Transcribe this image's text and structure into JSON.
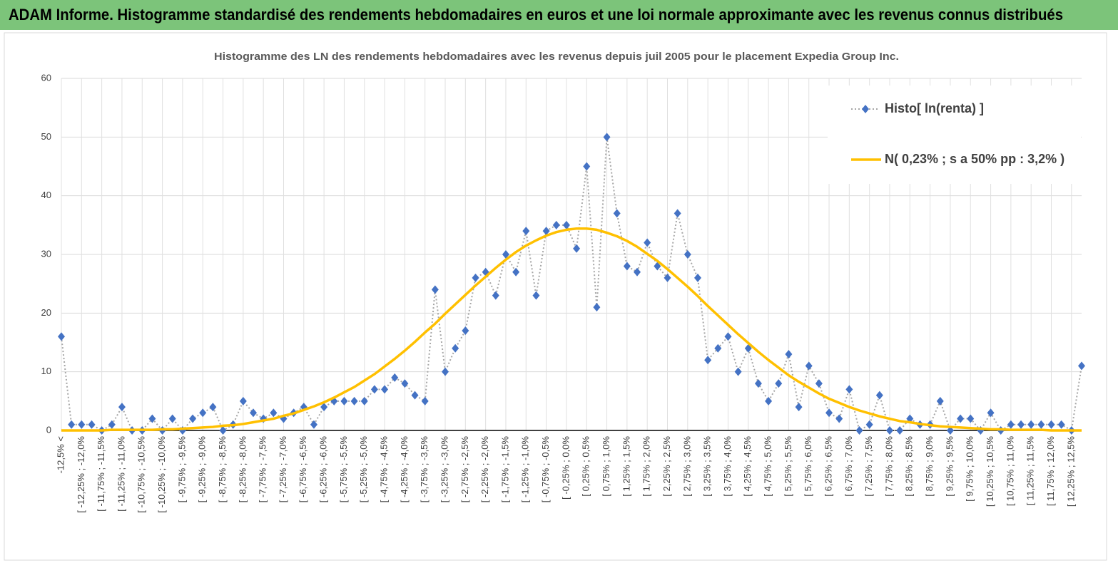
{
  "chart_data": {
    "type": "line",
    "banner": "ADAM Informe. Histogramme standardisé des rendements hebdomadaires en euros et une loi normale approximante avec les revenus connus distribués",
    "title": "Histogramme des LN des rendements hebdomadaires avec les revenus depuis juil 2005 pour le placement Expedia Group Inc.",
    "categories": [
      "-12,5% <",
      null,
      "[ -12,25% ; -12,0%",
      null,
      "[ -11,75% ; -11,5%",
      null,
      "[ -11,25% ; -11,0%",
      null,
      "[ -10,75% ; -10,5%",
      null,
      "[ -10,25% ; -10,0%",
      null,
      "[ -9,75% ; -9,5%",
      null,
      "[ -9,25% ; -9,0%",
      null,
      "[ -8,75% ; -8,5%",
      null,
      "[ -8,25% ; -8,0%",
      null,
      "[ -7,75% ; -7,5%",
      null,
      "[ -7,25% ; -7,0%",
      null,
      "[ -6,75% ; -6,5%",
      null,
      "[ -6,25% ; -6,0%",
      null,
      "[ -5,75% ; -5,5%",
      null,
      "[ -5,25% ; -5,0%",
      null,
      "[ -4,75% ; -4,5%",
      null,
      "[ -4,25% ; -4,0%",
      null,
      "[ -3,75% ; -3,5%",
      null,
      "[ -3,25% ; -3,0%",
      null,
      "[ -2,75% ; -2,5%",
      null,
      "[ -2,25% ; -2,0%",
      null,
      "[ -1,75% ; -1,5%",
      null,
      "[ -1,25% ; -1,0%",
      null,
      "[ -0,75% ; -0,5%",
      null,
      "[ -0,25% ; 0,0%",
      null,
      "[ 0,25% ; 0,5%",
      null,
      "[ 0,75% ; 1,0%",
      null,
      "[ 1,25% ; 1,5%",
      null,
      "[ 1,75% ; 2,0%",
      null,
      "[ 2,25% ; 2,5%",
      null,
      "[ 2,75% ; 3,0%",
      null,
      "[ 3,25% ; 3,5%",
      null,
      "[ 3,75% ; 4,0%",
      null,
      "[ 4,25% ; 4,5%",
      null,
      "[ 4,75% ; 5,0%",
      null,
      "[ 5,25% ; 5,5%",
      null,
      "[ 5,75% ; 6,0%",
      null,
      "[ 6,25% ; 6,5%",
      null,
      "[ 6,75% ; 7,0%",
      null,
      "[ 7,25% ; 7,5%",
      null,
      "[ 7,75% ; 8,0%",
      null,
      "[ 8,25% ; 8,5%",
      null,
      "[ 8,75% ; 9,0%",
      null,
      "[ 9,25% ; 9,5%",
      null,
      "[ 9,75% ; 10,0%",
      null,
      "[ 10,25% ; 10,5%",
      null,
      "[ 10,75% ; 11,0%",
      null,
      "[ 11,25% ; 11,5%",
      null,
      "[ 11,75% ; 12,0%",
      null,
      "[ 12,25% ; 12,5%",
      null
    ],
    "series": [
      {
        "name": "Histo[ ln(renta) ]",
        "color": "#4472c4",
        "line_color": "#a6a6a6",
        "values": [
          16,
          1,
          1,
          1,
          0,
          1,
          4,
          0,
          0,
          2,
          0,
          2,
          0,
          2,
          3,
          4,
          0,
          1,
          5,
          3,
          2,
          3,
          2,
          3,
          4,
          1,
          4,
          5,
          5,
          5,
          5,
          7,
          7,
          9,
          8,
          6,
          5,
          24,
          10,
          14,
          17,
          26,
          27,
          23,
          30,
          27,
          34,
          23,
          34,
          35,
          35,
          31,
          45,
          21,
          50,
          37,
          28,
          27,
          32,
          28,
          26,
          37,
          30,
          26,
          12,
          14,
          16,
          10,
          14,
          8,
          5,
          8,
          13,
          4,
          11,
          8,
          3,
          2,
          7,
          0,
          1,
          6,
          0,
          0,
          2,
          1,
          1,
          5,
          0,
          2,
          2,
          0,
          3,
          0,
          1,
          1,
          1,
          1,
          1,
          1,
          0,
          11
        ]
      },
      {
        "name": "N( 0,23% ; s a 50% pp : 3,2% )",
        "color": "#ffc000",
        "values": [
          0,
          0,
          0,
          0,
          0,
          0.1,
          0.1,
          0.1,
          0.1,
          0.1,
          0.2,
          0.2,
          0.3,
          0.4,
          0.5,
          0.6,
          0.8,
          0.9,
          1.1,
          1.4,
          1.7,
          2.0,
          2.5,
          2.9,
          3.5,
          4.1,
          4.8,
          5.6,
          6.5,
          7.4,
          8.5,
          9.6,
          10.9,
          12.2,
          13.6,
          15.1,
          16.7,
          18.2,
          19.9,
          21.5,
          23.1,
          24.7,
          26.2,
          27.7,
          29.1,
          30.4,
          31.5,
          32.4,
          33.2,
          33.8,
          34.2,
          34.4,
          34.4,
          34.2,
          33.7,
          33.1,
          32.3,
          31.3,
          30.1,
          28.9,
          27.5,
          26.0,
          24.5,
          22.9,
          21.2,
          19.6,
          18.0,
          16.4,
          14.9,
          13.4,
          12.0,
          10.7,
          9.4,
          8.3,
          7.3,
          6.3,
          5.4,
          4.7,
          4.0,
          3.4,
          2.9,
          2.4,
          2.0,
          1.6,
          1.4,
          1.1,
          0.9,
          0.7,
          0.6,
          0.5,
          0.4,
          0.3,
          0.2,
          0.2,
          0.1,
          0.1,
          0.1,
          0.1,
          0,
          0,
          0,
          0
        ]
      }
    ],
    "ylim": [
      0,
      60
    ],
    "yticks": [
      0,
      10,
      20,
      30,
      40,
      50,
      60
    ],
    "grid": true,
    "legend": "upper right"
  }
}
